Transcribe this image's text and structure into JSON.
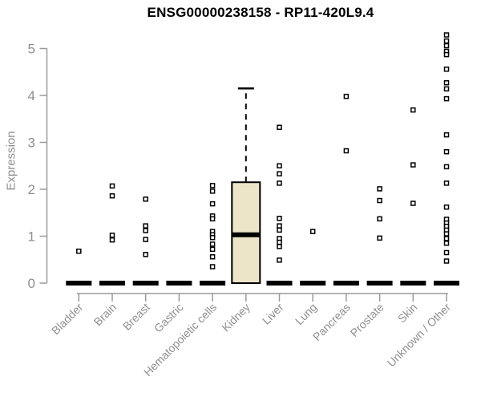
{
  "chart_data": {
    "type": "boxplot",
    "title": "ENSG00000238158 - RP11-420L9.4",
    "xlabel": "",
    "ylabel": "Expression",
    "ylim": [
      0,
      5.4
    ],
    "yticks": [
      0,
      1,
      2,
      3,
      4,
      5
    ],
    "grid": false,
    "legend_position": "none",
    "categories": [
      "Bladder",
      "Brain",
      "Breast",
      "Gastric",
      "Hematopoietic cells",
      "Kidney",
      "Liver",
      "Lung",
      "Pancreas",
      "Prostate",
      "Skin",
      "Unknown / Other"
    ],
    "series": [
      {
        "name": "Bladder",
        "box": {
          "collapsed": true,
          "q1": 0,
          "median": 0,
          "q3": 0,
          "whisker_low": 0,
          "whisker_high": 0
        },
        "points": [
          0.68
        ]
      },
      {
        "name": "Brain",
        "box": {
          "collapsed": true,
          "q1": 0,
          "median": 0,
          "q3": 0,
          "whisker_low": 0,
          "whisker_high": 0
        },
        "points": [
          2.07,
          1.86,
          1.02,
          0.92
        ]
      },
      {
        "name": "Breast",
        "box": {
          "collapsed": true,
          "q1": 0,
          "median": 0,
          "q3": 0,
          "whisker_low": 0,
          "whisker_high": 0
        },
        "points": [
          1.79,
          1.22,
          1.12,
          0.93,
          0.61
        ]
      },
      {
        "name": "Gastric",
        "box": {
          "collapsed": true,
          "q1": 0,
          "median": 0,
          "q3": 0,
          "whisker_low": 0,
          "whisker_high": 0
        },
        "points": []
      },
      {
        "name": "Hematopoietic cells",
        "box": {
          "collapsed": true,
          "q1": 0,
          "median": 0,
          "q3": 0,
          "whisker_low": 0,
          "whisker_high": 0
        },
        "points": [
          2.08,
          1.96,
          1.69,
          1.43,
          1.37,
          1.1,
          1.03,
          0.97,
          0.83,
          0.72,
          0.56,
          0.35
        ]
      },
      {
        "name": "Kidney",
        "box": {
          "collapsed": false,
          "q1": 0,
          "median": 1.03,
          "q3": 2.15,
          "whisker_low": 0,
          "whisker_high": 4.15
        },
        "points": []
      },
      {
        "name": "Liver",
        "box": {
          "collapsed": true,
          "q1": 0,
          "median": 0,
          "q3": 0,
          "whisker_low": 0,
          "whisker_high": 0
        },
        "points": [
          3.32,
          2.5,
          2.33,
          2.13,
          1.38,
          1.22,
          1.13,
          0.95,
          0.87,
          0.78,
          0.49
        ]
      },
      {
        "name": "Lung",
        "box": {
          "collapsed": true,
          "q1": 0,
          "median": 0,
          "q3": 0,
          "whisker_low": 0,
          "whisker_high": 0
        },
        "points": [
          1.1
        ]
      },
      {
        "name": "Pancreas",
        "box": {
          "collapsed": true,
          "q1": 0,
          "median": 0,
          "q3": 0,
          "whisker_low": 0,
          "whisker_high": 0
        },
        "points": [
          3.98,
          2.82
        ]
      },
      {
        "name": "Prostate",
        "box": {
          "collapsed": true,
          "q1": 0,
          "median": 0,
          "q3": 0,
          "whisker_low": 0,
          "whisker_high": 0
        },
        "points": [
          2.01,
          1.76,
          1.37,
          0.96
        ]
      },
      {
        "name": "Skin",
        "box": {
          "collapsed": true,
          "q1": 0,
          "median": 0,
          "q3": 0,
          "whisker_low": 0,
          "whisker_high": 0
        },
        "points": [
          3.69,
          2.52,
          1.7
        ]
      },
      {
        "name": "Unknown / Other",
        "box": {
          "collapsed": true,
          "q1": 0,
          "median": 0,
          "q3": 0,
          "whisker_low": 0,
          "whisker_high": 0
        },
        "points": [
          5.29,
          5.16,
          5.06,
          4.94,
          4.87,
          4.56,
          4.27,
          4.14,
          3.93,
          3.16,
          2.8,
          2.48,
          2.13,
          1.62,
          1.36,
          1.28,
          1.21,
          1.13,
          1.05,
          0.95,
          0.85,
          0.65,
          0.47
        ]
      }
    ],
    "colors": {
      "box_fill": "#ECE5C8",
      "box_stroke": "#000000",
      "median": "#000000",
      "zero_bar": "#000000",
      "point_stroke": "#000000",
      "point_fill": "#ffffff",
      "axis": "#9a9a9a",
      "tick_label": "#8f8f8f",
      "title": "#000000"
    }
  }
}
